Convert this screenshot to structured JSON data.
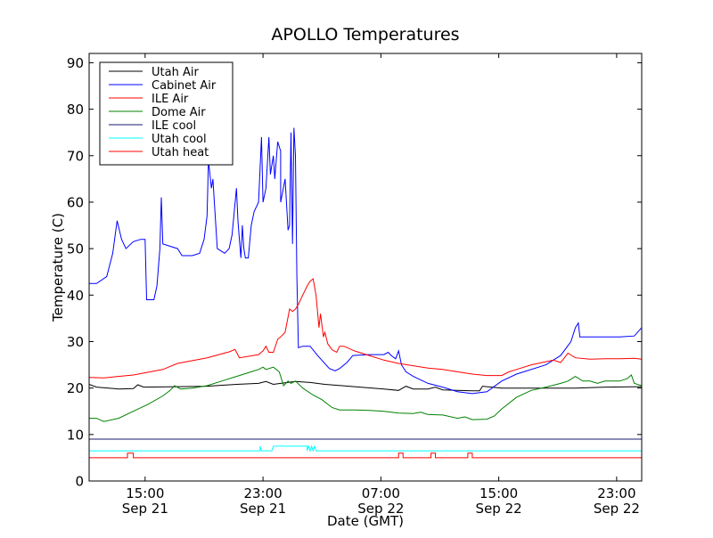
{
  "chart_data": {
    "type": "line",
    "title": "APOLLO Temperatures",
    "xlabel": "Date (GMT)",
    "ylabel": "Temperature (C)",
    "x_unit": "hours from Sep 21 10:00 GMT",
    "xlim": [
      0,
      37.5
    ],
    "ylim": [
      0,
      92
    ],
    "x_ticks": [
      {
        "x": 3.8,
        "line1": "15:00",
        "line2": "Sep 21"
      },
      {
        "x": 11.8,
        "line1": "23:00",
        "line2": "Sep 21"
      },
      {
        "x": 19.8,
        "line1": "07:00",
        "line2": "Sep 22"
      },
      {
        "x": 27.8,
        "line1": "15:00",
        "line2": "Sep 22"
      },
      {
        "x": 35.8,
        "line1": "23:00",
        "line2": "Sep 22"
      }
    ],
    "y_ticks": [
      0,
      10,
      20,
      30,
      40,
      50,
      60,
      70,
      80,
      90
    ],
    "legend_position": "top-left",
    "grid": false,
    "series": [
      {
        "name": "Utah Air",
        "color": "#000000",
        "points": [
          [
            0,
            20.8
          ],
          [
            0.5,
            20.2
          ],
          [
            2,
            19.8
          ],
          [
            3,
            19.9
          ],
          [
            3.3,
            20.7
          ],
          [
            3.7,
            20.2
          ],
          [
            6,
            20.3
          ],
          [
            8,
            20.4
          ],
          [
            10,
            20.8
          ],
          [
            11.5,
            21
          ],
          [
            12,
            21.4
          ],
          [
            12.5,
            20.8
          ],
          [
            13,
            21
          ],
          [
            14,
            21.4
          ],
          [
            15,
            21.2
          ],
          [
            16,
            20.8
          ],
          [
            18,
            20.3
          ],
          [
            20,
            19.8
          ],
          [
            21,
            19.5
          ],
          [
            21.5,
            20.4
          ],
          [
            22,
            19.8
          ],
          [
            23,
            19.8
          ],
          [
            23.5,
            20.2
          ],
          [
            24,
            19.6
          ],
          [
            26,
            19.4
          ],
          [
            26.5,
            19.4
          ],
          [
            26.7,
            20.4
          ],
          [
            28,
            20
          ],
          [
            31,
            20
          ],
          [
            33,
            20
          ],
          [
            35,
            20.2
          ],
          [
            37.5,
            20.3
          ]
        ]
      },
      {
        "name": "Cabinet Air",
        "color": "#0000ff",
        "points": [
          [
            0,
            42.5
          ],
          [
            0.5,
            42.5
          ],
          [
            1.2,
            44
          ],
          [
            1.6,
            49
          ],
          [
            1.9,
            56
          ],
          [
            2.2,
            52
          ],
          [
            2.5,
            50
          ],
          [
            3,
            51.5
          ],
          [
            3.5,
            52
          ],
          [
            3.8,
            52
          ],
          [
            3.9,
            39
          ],
          [
            4.4,
            39
          ],
          [
            4.6,
            42
          ],
          [
            4.8,
            50
          ],
          [
            4.9,
            61
          ],
          [
            5,
            51
          ],
          [
            6,
            50
          ],
          [
            6.3,
            48.5
          ],
          [
            7,
            48.5
          ],
          [
            7.5,
            49
          ],
          [
            7.8,
            52
          ],
          [
            8,
            57
          ],
          [
            8.1,
            69
          ],
          [
            8.3,
            63
          ],
          [
            8.4,
            65
          ],
          [
            8.5,
            60
          ],
          [
            8.7,
            50
          ],
          [
            9.2,
            49
          ],
          [
            9.5,
            50
          ],
          [
            9.7,
            53
          ],
          [
            10,
            63
          ],
          [
            10.1,
            56
          ],
          [
            10.2,
            52
          ],
          [
            10.3,
            48
          ],
          [
            10.4,
            55
          ],
          [
            10.5,
            50
          ],
          [
            10.6,
            48
          ],
          [
            10.8,
            48
          ],
          [
            11,
            55
          ],
          [
            11.2,
            58
          ],
          [
            11.5,
            60
          ],
          [
            11.7,
            74
          ],
          [
            11.8,
            60
          ],
          [
            12,
            63
          ],
          [
            12.2,
            74
          ],
          [
            12.3,
            66
          ],
          [
            12.5,
            70
          ],
          [
            12.6,
            65
          ],
          [
            12.8,
            73
          ],
          [
            13,
            71
          ],
          [
            13,
            60
          ],
          [
            13.3,
            65
          ],
          [
            13.5,
            54
          ],
          [
            13.6,
            55
          ],
          [
            13.7,
            75
          ],
          [
            13.8,
            51
          ],
          [
            13.9,
            76
          ],
          [
            14,
            70
          ],
          [
            14.1,
            44
          ],
          [
            14.2,
            28.7
          ],
          [
            14.5,
            29
          ],
          [
            15,
            29
          ],
          [
            15.5,
            27
          ],
          [
            16.3,
            24.2
          ],
          [
            16.7,
            23.7
          ],
          [
            17,
            24.2
          ],
          [
            17.5,
            25.5
          ],
          [
            17.9,
            27
          ],
          [
            19,
            27.2
          ],
          [
            20,
            27.2
          ],
          [
            20.3,
            27.7
          ],
          [
            20.5,
            27
          ],
          [
            20.8,
            26.3
          ],
          [
            21,
            28
          ],
          [
            21.2,
            25
          ],
          [
            21.5,
            23.5
          ],
          [
            22,
            22.5
          ],
          [
            23,
            21
          ],
          [
            24,
            20.2
          ],
          [
            25,
            19.2
          ],
          [
            26,
            18.8
          ],
          [
            27,
            19.2
          ],
          [
            28,
            21.5
          ],
          [
            29,
            23
          ],
          [
            31,
            25
          ],
          [
            32,
            27
          ],
          [
            32.7,
            30
          ],
          [
            33,
            33
          ],
          [
            33.2,
            34
          ],
          [
            33.3,
            31
          ],
          [
            34,
            31
          ],
          [
            35,
            31
          ],
          [
            36,
            31
          ],
          [
            37,
            31.2
          ],
          [
            37.5,
            33
          ]
        ]
      },
      {
        "name": "ILE Air",
        "color": "#ff0000",
        "points": [
          [
            0,
            22.3
          ],
          [
            1,
            22.2
          ],
          [
            3,
            22.8
          ],
          [
            5,
            24
          ],
          [
            6,
            25.3
          ],
          [
            8,
            26.5
          ],
          [
            9.5,
            27.8
          ],
          [
            9.9,
            28.3
          ],
          [
            10.2,
            26.5
          ],
          [
            11.5,
            27.2
          ],
          [
            11.8,
            28
          ],
          [
            12,
            29
          ],
          [
            12.2,
            27.7
          ],
          [
            12.5,
            27.7
          ],
          [
            12.8,
            30.5
          ],
          [
            13,
            31
          ],
          [
            13.3,
            32
          ],
          [
            13.6,
            37
          ],
          [
            13.8,
            36.5
          ],
          [
            14,
            37
          ],
          [
            14.2,
            38
          ],
          [
            14.5,
            40
          ],
          [
            14.8,
            42
          ],
          [
            15,
            43
          ],
          [
            15.2,
            43.5
          ],
          [
            15.4,
            40
          ],
          [
            15.6,
            33
          ],
          [
            15.7,
            36
          ],
          [
            15.9,
            31
          ],
          [
            16,
            32
          ],
          [
            16.2,
            29.5
          ],
          [
            16.5,
            28.2
          ],
          [
            16.8,
            27.7
          ],
          [
            17,
            29
          ],
          [
            17.3,
            29
          ],
          [
            18,
            28
          ],
          [
            19,
            27
          ],
          [
            20,
            26
          ],
          [
            21,
            25.3
          ],
          [
            22,
            24.8
          ],
          [
            23,
            24.3
          ],
          [
            24,
            24
          ],
          [
            25,
            23.5
          ],
          [
            26,
            23
          ],
          [
            27,
            22.7
          ],
          [
            28,
            22.7
          ],
          [
            28.5,
            23.5
          ],
          [
            29,
            24
          ],
          [
            30,
            25
          ],
          [
            31.5,
            26
          ],
          [
            32,
            25.5
          ],
          [
            32.5,
            27.5
          ],
          [
            33,
            26.5
          ],
          [
            34,
            26.2
          ],
          [
            35,
            26.3
          ],
          [
            36,
            26.3
          ],
          [
            37,
            26.4
          ],
          [
            37.5,
            26.2
          ]
        ]
      },
      {
        "name": "Dome Air",
        "color": "#008000",
        "points": [
          [
            0,
            13.5
          ],
          [
            0.5,
            13.5
          ],
          [
            1,
            12.8
          ],
          [
            2,
            13.5
          ],
          [
            3,
            15
          ],
          [
            4,
            16.5
          ],
          [
            5,
            18.3
          ],
          [
            5.5,
            19.5
          ],
          [
            5.8,
            20.5
          ],
          [
            6.2,
            19.8
          ],
          [
            7,
            20
          ],
          [
            8,
            20.5
          ],
          [
            9,
            21.5
          ],
          [
            10,
            22.5
          ],
          [
            11,
            23.5
          ],
          [
            11.5,
            24
          ],
          [
            11.8,
            24.5
          ],
          [
            12,
            24
          ],
          [
            12.5,
            24.5
          ],
          [
            12.9,
            23.5
          ],
          [
            13.2,
            20.5
          ],
          [
            13.5,
            21.5
          ],
          [
            13.7,
            21
          ],
          [
            14,
            21.5
          ],
          [
            14.5,
            20
          ],
          [
            15.2,
            18.5
          ],
          [
            15.8,
            17.5
          ],
          [
            16.2,
            16.5
          ],
          [
            16.5,
            15.8
          ],
          [
            17,
            15.3
          ],
          [
            18,
            15.3
          ],
          [
            19,
            15.2
          ],
          [
            20,
            15
          ],
          [
            21,
            14.6
          ],
          [
            22,
            14.5
          ],
          [
            22.5,
            14.8
          ],
          [
            23,
            14.3
          ],
          [
            24,
            14.2
          ],
          [
            25,
            13.5
          ],
          [
            25.5,
            13.8
          ],
          [
            26,
            13.2
          ],
          [
            27,
            13.3
          ],
          [
            27.5,
            14
          ],
          [
            28,
            15.5
          ],
          [
            29,
            18
          ],
          [
            30,
            19.5
          ],
          [
            31,
            20.2
          ],
          [
            32,
            21
          ],
          [
            32.5,
            21.5
          ],
          [
            33,
            22.5
          ],
          [
            33.5,
            21.5
          ],
          [
            34,
            21.5
          ],
          [
            34.5,
            21
          ],
          [
            35,
            21.5
          ],
          [
            36,
            21.5
          ],
          [
            36.5,
            22
          ],
          [
            36.8,
            22.8
          ],
          [
            37,
            21
          ],
          [
            37.5,
            20.5
          ]
        ]
      },
      {
        "name": "ILE cool",
        "color": "#191970",
        "points": [
          [
            0,
            9
          ],
          [
            37.5,
            9
          ]
        ]
      },
      {
        "name": "Utah cool",
        "color": "#00ffff",
        "points": [
          [
            0,
            6.5
          ],
          [
            11.6,
            6.5
          ],
          [
            11.6,
            7.5
          ],
          [
            11.7,
            6.5
          ],
          [
            12.4,
            6.5
          ],
          [
            12.5,
            7.5
          ],
          [
            14.8,
            7.5
          ],
          [
            14.8,
            6.5
          ],
          [
            14.9,
            7.5
          ],
          [
            15,
            6.5
          ],
          [
            15.1,
            7.5
          ],
          [
            15.2,
            6.5
          ],
          [
            15.3,
            7.5
          ],
          [
            15.4,
            6.5
          ],
          [
            37.5,
            6.5
          ]
        ]
      },
      {
        "name": "Utah heat",
        "color": "#ff0000",
        "points": [
          [
            0,
            5
          ],
          [
            2.6,
            5
          ],
          [
            2.6,
            6
          ],
          [
            3,
            6
          ],
          [
            3,
            5
          ],
          [
            21,
            5
          ],
          [
            21,
            6
          ],
          [
            21.3,
            6
          ],
          [
            21.3,
            5
          ],
          [
            23.2,
            5
          ],
          [
            23.2,
            6
          ],
          [
            23.5,
            6
          ],
          [
            23.5,
            5
          ],
          [
            25.7,
            5
          ],
          [
            25.7,
            6
          ],
          [
            26,
            6
          ],
          [
            26,
            5
          ],
          [
            37.5,
            5
          ]
        ]
      }
    ]
  }
}
